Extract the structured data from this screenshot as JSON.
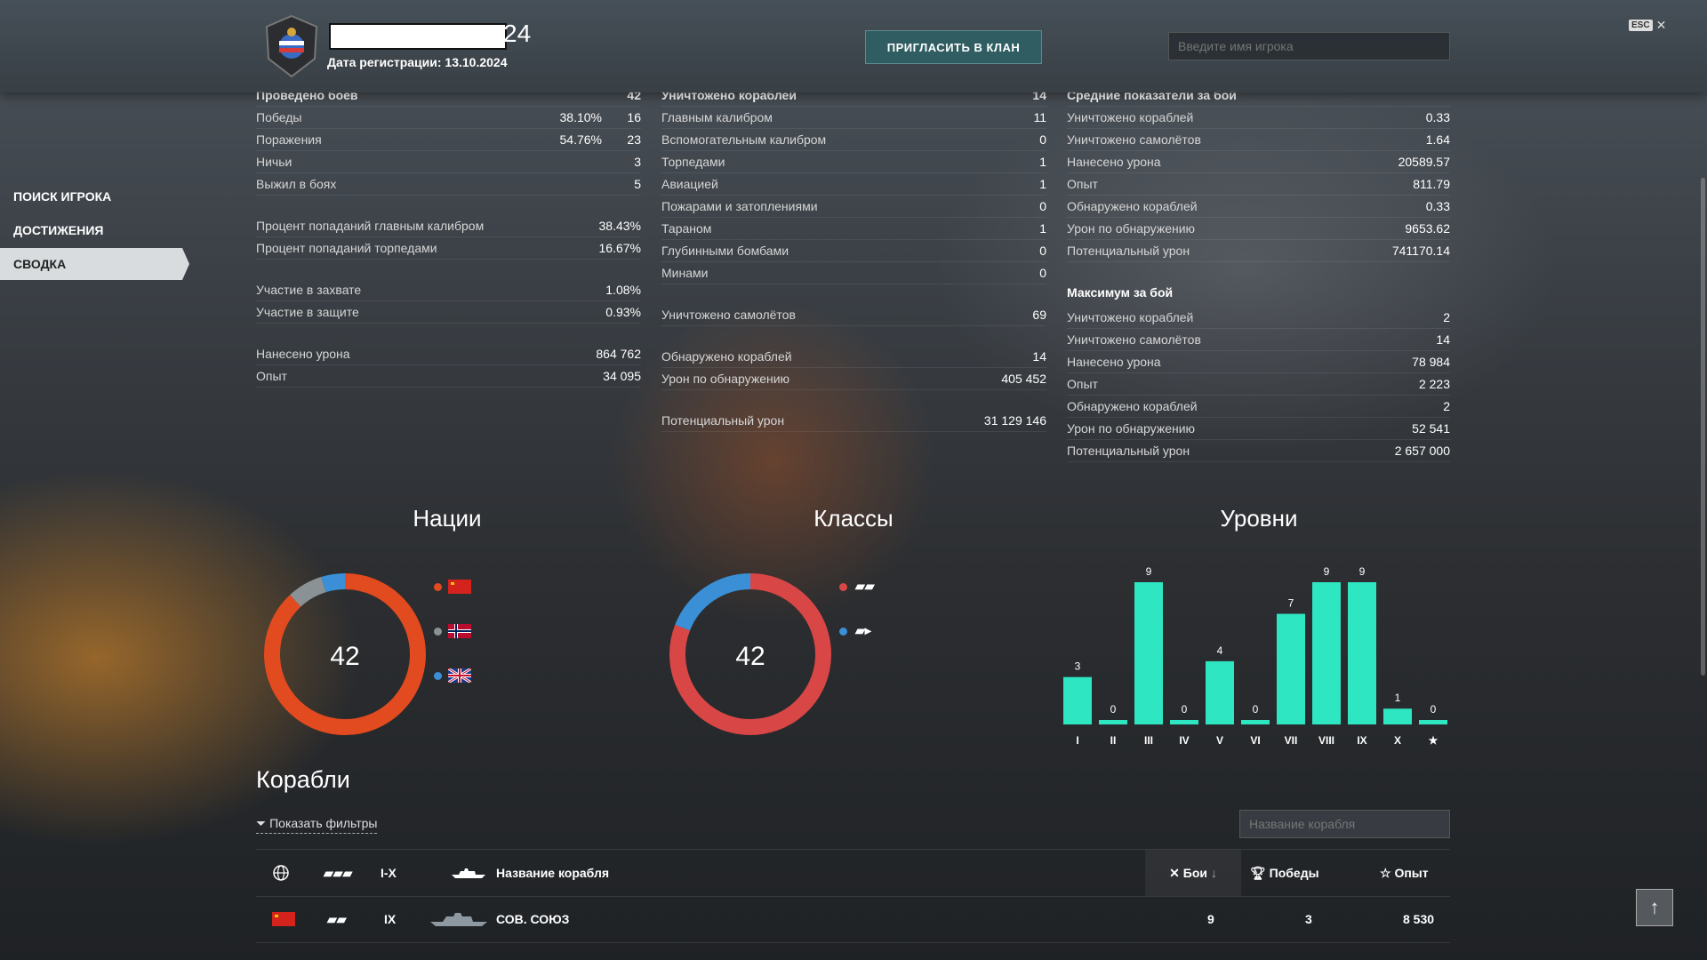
{
  "header": {
    "player_suffix": "24",
    "registration": "Дата регистрации: 13.10.2024",
    "invite_label": "ПРИГЛАСИТЬ В КЛАН",
    "search_placeholder": "Введите имя игрока",
    "esc_label": "ESC"
  },
  "nav": {
    "items": [
      {
        "label": "ПОИСК ИГРОКА"
      },
      {
        "label": "ДОСТИЖЕНИЯ"
      },
      {
        "label": "СВОДКА"
      }
    ]
  },
  "col1": {
    "head_label": "Проведено боёв",
    "head_value": "42",
    "rows": [
      {
        "label": "Победы",
        "pct": "38.10%",
        "value": "16"
      },
      {
        "label": "Поражения",
        "pct": "54.76%",
        "value": "23"
      },
      {
        "label": "Ничьи",
        "pct": "",
        "value": "3"
      },
      {
        "label": "Выжил в боях",
        "pct": "",
        "value": "5"
      }
    ],
    "rows2": [
      {
        "label": "Процент попаданий главным калибром",
        "value": "38.43%"
      },
      {
        "label": "Процент попаданий торпедами",
        "value": "16.67%"
      }
    ],
    "rows3": [
      {
        "label": "Участие в захвате",
        "value": "1.08%"
      },
      {
        "label": "Участие в защите",
        "value": "0.93%"
      }
    ],
    "rows4": [
      {
        "label": "Нанесено урона",
        "value": "864 762"
      },
      {
        "label": "Опыт",
        "value": "34 095"
      }
    ]
  },
  "col2": {
    "head_label": "Уничтожено кораблей",
    "head_value": "14",
    "rows": [
      {
        "label": "Главным калибром",
        "value": "11"
      },
      {
        "label": "Вспомогательным калибром",
        "value": "0"
      },
      {
        "label": "Торпедами",
        "value": "1"
      },
      {
        "label": "Авиацией",
        "value": "1"
      },
      {
        "label": "Пожарами и затоплениями",
        "value": "0"
      },
      {
        "label": "Тараном",
        "value": "1"
      },
      {
        "label": "Глубинными бомбами",
        "value": "0"
      },
      {
        "label": "Минами",
        "value": "0"
      }
    ],
    "rows2": [
      {
        "label": "Уничтожено самолётов",
        "value": "69"
      }
    ],
    "rows3": [
      {
        "label": "Обнаружено кораблей",
        "value": "14"
      },
      {
        "label": "Урон по обнаружению",
        "value": "405 452"
      }
    ],
    "rows4": [
      {
        "label": "Потенциальный урон",
        "value": "31 129 146"
      }
    ]
  },
  "col3": {
    "head_label": "Средние показатели за бой",
    "rows": [
      {
        "label": "Уничтожено кораблей",
        "value": "0.33"
      },
      {
        "label": "Уничтожено самолётов",
        "value": "1.64"
      },
      {
        "label": "Нанесено урона",
        "value": "20589.57"
      },
      {
        "label": "Опыт",
        "value": "811.79"
      },
      {
        "label": "Обнаружено кораблей",
        "value": "0.33"
      },
      {
        "label": "Урон по обнаружению",
        "value": "9653.62"
      },
      {
        "label": "Потенциальный урон",
        "value": "741170.14"
      }
    ],
    "max_label": "Максимум за бой",
    "max_rows": [
      {
        "label": "Уничтожено кораблей",
        "value": "2"
      },
      {
        "label": "Уничтожено самолётов",
        "value": "14"
      },
      {
        "label": "Нанесено урона",
        "value": "78 984"
      },
      {
        "label": "Опыт",
        "value": "2 223"
      },
      {
        "label": "Обнаружено кораблей",
        "value": "2"
      },
      {
        "label": "Урон по обнаружению",
        "value": "52 541"
      },
      {
        "label": "Потенциальный урон",
        "value": "2 657 000"
      }
    ]
  },
  "charts_titles": {
    "nations": "Нации",
    "classes": "Классы",
    "tiers": "Уровни"
  },
  "chart_data": [
    {
      "type": "pie",
      "center_label": "42",
      "legend": [
        "ussr-flag-icon",
        "norway-flag-icon",
        "uk-flag-icon"
      ],
      "values": [
        37,
        3,
        2
      ],
      "colors": [
        "#e24a1f",
        "#8a9296",
        "#3a8fd6"
      ]
    },
    {
      "type": "pie",
      "center_label": "42",
      "legend": [
        "battleship-icon",
        "cruiser-icon"
      ],
      "values": [
        34,
        8
      ],
      "colors": [
        "#d94646",
        "#3a8fd6"
      ]
    },
    {
      "type": "bar",
      "categories": [
        "I",
        "II",
        "III",
        "IV",
        "V",
        "VI",
        "VII",
        "VIII",
        "IX",
        "X",
        "★"
      ],
      "values": [
        3,
        0,
        9,
        0,
        4,
        0,
        7,
        9,
        9,
        1,
        0
      ],
      "ylim": [
        0,
        9
      ],
      "color": "#2ee6c2"
    }
  ],
  "ships": {
    "title": "Корабли",
    "filters_label": "Показать фильтры",
    "search_placeholder": "Название корабля",
    "headers": {
      "tier": "I-X",
      "name": "Название корабля",
      "battles": "Бои",
      "wins": "Победы",
      "exp": "Опыт"
    },
    "rows": [
      {
        "tier": "IX",
        "name": "СОВ. СОЮЗ",
        "battles": "9",
        "wins": "3",
        "exp": "8 530"
      }
    ]
  }
}
